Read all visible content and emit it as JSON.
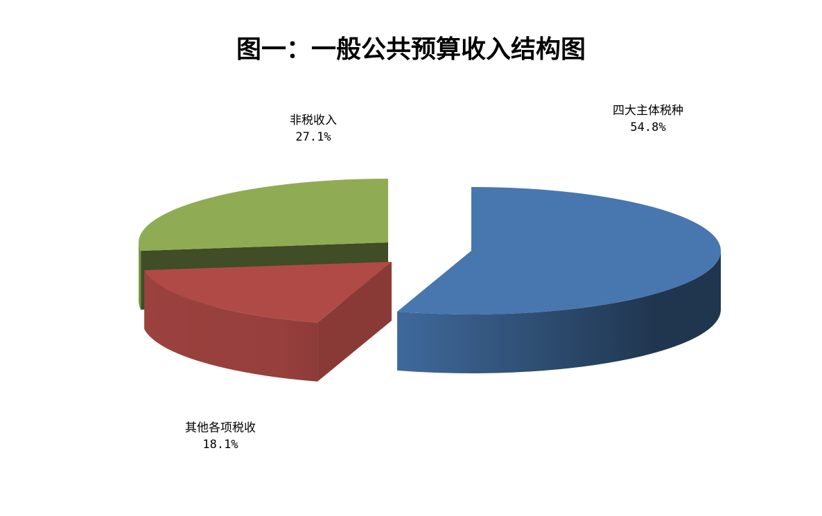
{
  "chart_data": {
    "type": "pie",
    "style": "3d-exploded",
    "title": "图一：一般公共预算收入结构图",
    "slices": [
      {
        "name": "四大主体税种",
        "value": 54.8,
        "label": "54.8%",
        "color": "#4877B0"
      },
      {
        "name": "其他各项税收",
        "value": 18.1,
        "label": "18.1%",
        "color": "#B04A47"
      },
      {
        "name": "非税收入",
        "value": 27.1,
        "label": "27.1%",
        "color": "#8FAC55"
      }
    ],
    "legend": "none"
  }
}
